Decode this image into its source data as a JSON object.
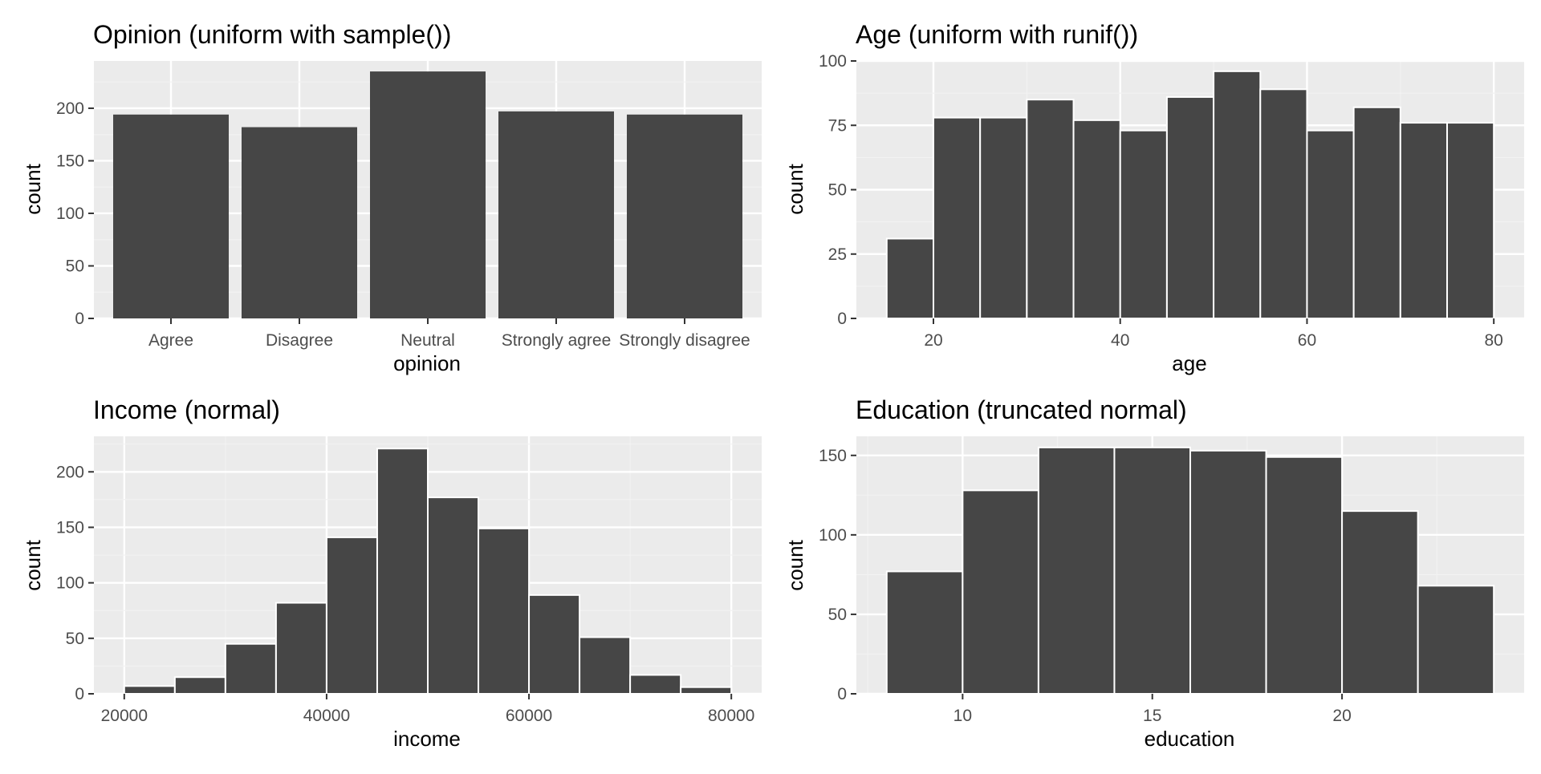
{
  "colors": {
    "panel_background": "#EBEBEB",
    "grid_major": "#FFFFFF",
    "grid_minor": "#F2F2F2",
    "bar_fill": "#464646",
    "bar_outline": "#FFFFFF",
    "tick_text": "#4D4D4D",
    "title_text": "#000000"
  },
  "chart_data": [
    {
      "type": "bar",
      "title": "Opinion (uniform with sample())",
      "xlabel": "opinion",
      "ylabel": "count",
      "categories": [
        "Agree",
        "Disagree",
        "Neutral",
        "Strongly agree",
        "Strongly disagree"
      ],
      "values": [
        194,
        182,
        235,
        197,
        194
      ],
      "ylim": [
        0,
        245
      ],
      "yticks": [
        0,
        50,
        100,
        150,
        200
      ],
      "grid": true
    },
    {
      "type": "bar",
      "histogram": true,
      "title": "Age (uniform with runif())",
      "xlabel": "age",
      "ylabel": "count",
      "bin_edges": [
        15,
        20,
        25,
        30,
        35,
        40,
        45,
        50,
        55,
        60,
        65,
        70,
        75,
        80
      ],
      "values": [
        31,
        78,
        78,
        85,
        77,
        73,
        86,
        96,
        89,
        73,
        82,
        76,
        76
      ],
      "xlim": [
        11.75,
        83.25
      ],
      "ylim": [
        0,
        100
      ],
      "xticks": [
        20,
        40,
        60,
        80
      ],
      "yticks": [
        0,
        25,
        50,
        75,
        100
      ],
      "grid": true
    },
    {
      "type": "bar",
      "histogram": true,
      "title": "Income (normal)",
      "xlabel": "income",
      "ylabel": "count",
      "bin_edges": [
        20000,
        25000,
        30000,
        35000,
        40000,
        45000,
        50000,
        55000,
        60000,
        65000,
        70000,
        75000,
        80000
      ],
      "values": [
        7,
        15,
        45,
        82,
        141,
        221,
        177,
        149,
        89,
        51,
        17,
        6
      ],
      "xlim": [
        17000,
        83000
      ],
      "ylim": [
        0,
        232
      ],
      "xticks": [
        20000,
        40000,
        60000,
        80000
      ],
      "yticks": [
        0,
        50,
        100,
        150,
        200
      ],
      "grid": true
    },
    {
      "type": "bar",
      "histogram": true,
      "title": "Education (truncated normal)",
      "xlabel": "education",
      "ylabel": "count",
      "bin_edges": [
        8,
        10,
        12,
        14,
        16,
        18,
        20,
        22,
        24
      ],
      "values": [
        77,
        128,
        155,
        155,
        153,
        149,
        115,
        68
      ],
      "xlim": [
        7.2,
        24.8
      ],
      "ylim": [
        0,
        162
      ],
      "xticks": [
        10,
        15,
        20
      ],
      "yticks": [
        0,
        50,
        100,
        150
      ],
      "grid": true
    }
  ]
}
